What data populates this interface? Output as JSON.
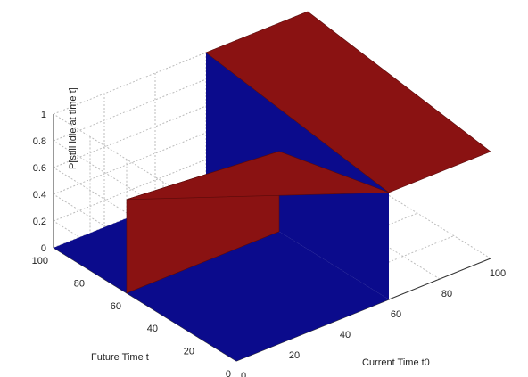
{
  "chart_data": {
    "type": "surface3d",
    "title": "",
    "xlabel": "Current Time t0",
    "ylabel": "Future Time t",
    "zlabel": "P[still idle at time t]",
    "xlim": [
      0,
      100
    ],
    "ylim": [
      0,
      100
    ],
    "zlim": [
      0,
      1
    ],
    "x_ticks": [
      0,
      20,
      40,
      60,
      80,
      100
    ],
    "y_ticks": [
      0,
      20,
      40,
      60,
      80,
      100
    ],
    "z_ticks": [
      0,
      0.2,
      0.4,
      0.6,
      0.8,
      1
    ],
    "grid": true,
    "description_points": {
      "t0_step_location": 60,
      "t_step_location": 60,
      "surface_value_low": 0,
      "surface_high_region_values": [
        0.6,
        0.7,
        0.8,
        1
      ]
    },
    "colors": {
      "low_surface": "#0b0b8c",
      "high_surface": "#8a1212",
      "grid": "#bdbdbd",
      "axis": "#333333"
    }
  }
}
